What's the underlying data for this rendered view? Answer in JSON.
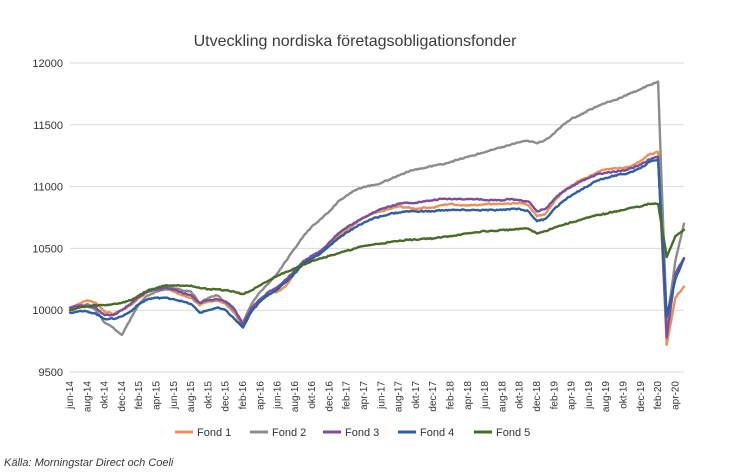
{
  "chart_data": {
    "type": "line",
    "title": "Utveckling nordiska företagsobligationsfonder",
    "xlabel": "",
    "ylabel": "",
    "ylim": [
      9500,
      12000
    ],
    "yticks": [
      9500,
      10000,
      10500,
      11000,
      11500,
      12000
    ],
    "x_ticks": [
      "jun-14",
      "aug-14",
      "okt-14",
      "dec-14",
      "feb-15",
      "apr-15",
      "jun-15",
      "aug-15",
      "okt-15",
      "dec-15",
      "feb-16",
      "apr-16",
      "jun-16",
      "aug-16",
      "okt-16",
      "dec-16",
      "feb-17",
      "apr-17",
      "jun-17",
      "aug-17",
      "okt-17",
      "dec-17",
      "feb-18",
      "apr-18",
      "jun-18",
      "aug-18",
      "okt-18",
      "dec-18",
      "feb-19",
      "apr-19",
      "jun-19",
      "aug-19",
      "okt-19",
      "dec-19",
      "feb-20",
      "apr-20"
    ],
    "grid": {
      "horizontal": true,
      "vertical": false
    },
    "legend_position": "bottom",
    "x": [
      "2014-06",
      "2014-07",
      "2014-08",
      "2014-09",
      "2014-10",
      "2014-11",
      "2014-12",
      "2015-01",
      "2015-02",
      "2015-03",
      "2015-04",
      "2015-05",
      "2015-06",
      "2015-07",
      "2015-08",
      "2015-09",
      "2015-10",
      "2015-11",
      "2015-12",
      "2016-01",
      "2016-02",
      "2016-03",
      "2016-04",
      "2016-05",
      "2016-06",
      "2016-07",
      "2016-08",
      "2016-09",
      "2016-10",
      "2016-11",
      "2016-12",
      "2017-01",
      "2017-02",
      "2017-03",
      "2017-04",
      "2017-05",
      "2017-06",
      "2017-07",
      "2017-08",
      "2017-09",
      "2017-10",
      "2017-11",
      "2017-12",
      "2018-01",
      "2018-02",
      "2018-03",
      "2018-04",
      "2018-05",
      "2018-06",
      "2018-07",
      "2018-08",
      "2018-09",
      "2018-10",
      "2018-11",
      "2018-12",
      "2019-01",
      "2019-02",
      "2019-03",
      "2019-04",
      "2019-05",
      "2019-06",
      "2019-07",
      "2019-08",
      "2019-09",
      "2019-10",
      "2019-11",
      "2019-12",
      "2020-01",
      "2020-02",
      "2020-03",
      "2020-04",
      "2020-05"
    ],
    "series": [
      {
        "name": "Fond 1",
        "color": "#e8915a",
        "values": [
          10020,
          10050,
          10080,
          10060,
          9990,
          9970,
          10000,
          10040,
          10100,
          10150,
          10170,
          10180,
          10150,
          10120,
          10100,
          10040,
          10070,
          10080,
          10050,
          9980,
          9860,
          10020,
          10080,
          10130,
          10150,
          10200,
          10300,
          10380,
          10420,
          10460,
          10530,
          10600,
          10650,
          10700,
          10750,
          10780,
          10800,
          10820,
          10840,
          10830,
          10820,
          10830,
          10830,
          10850,
          10860,
          10850,
          10850,
          10850,
          10860,
          10860,
          10860,
          10860,
          10870,
          10850,
          10760,
          10780,
          10880,
          10960,
          11010,
          11050,
          11080,
          11120,
          11140,
          11150,
          11150,
          11170,
          11210,
          11260,
          11280,
          9720,
          10100,
          10190
        ]
      },
      {
        "name": "Fond 2",
        "color": "#8c8c8c",
        "values": [
          10000,
          10030,
          10050,
          10000,
          9900,
          9860,
          9800,
          9930,
          10050,
          10120,
          10150,
          10170,
          10180,
          10160,
          10150,
          10060,
          10100,
          10120,
          10060,
          10000,
          9900,
          10050,
          10150,
          10220,
          10300,
          10400,
          10500,
          10600,
          10680,
          10740,
          10800,
          10880,
          10930,
          10970,
          11000,
          11010,
          11030,
          11060,
          11090,
          11120,
          11140,
          11150,
          11170,
          11180,
          11200,
          11220,
          11240,
          11260,
          11280,
          11300,
          11320,
          11340,
          11360,
          11370,
          11350,
          11380,
          11430,
          11500,
          11550,
          11580,
          11620,
          11650,
          11680,
          11700,
          11730,
          11760,
          11790,
          11820,
          11850,
          9890,
          10400,
          10700
        ]
      },
      {
        "name": "Fond 3",
        "color": "#7b4f9e",
        "values": [
          10020,
          10040,
          10030,
          10020,
          9960,
          9960,
          10000,
          10050,
          10110,
          10150,
          10170,
          10180,
          10170,
          10140,
          10120,
          10060,
          10080,
          10090,
          10070,
          10010,
          9880,
          10020,
          10090,
          10150,
          10190,
          10250,
          10320,
          10400,
          10440,
          10480,
          10550,
          10620,
          10670,
          10710,
          10750,
          10790,
          10820,
          10840,
          10860,
          10870,
          10870,
          10880,
          10890,
          10900,
          10900,
          10900,
          10900,
          10900,
          10890,
          10890,
          10890,
          10900,
          10890,
          10880,
          10800,
          10820,
          10900,
          10960,
          11000,
          11040,
          11070,
          11100,
          11110,
          11120,
          11130,
          11150,
          11180,
          11220,
          11240,
          9780,
          10300,
          10420
        ]
      },
      {
        "name": "Fond 4",
        "color": "#2e5f9e",
        "values": [
          9980,
          9990,
          9990,
          9970,
          9930,
          9930,
          9950,
          9990,
          10050,
          10090,
          10100,
          10100,
          10090,
          10070,
          10050,
          9980,
          10000,
          10020,
          10000,
          9930,
          9860,
          9990,
          10070,
          10130,
          10170,
          10230,
          10300,
          10380,
          10420,
          10460,
          10520,
          10580,
          10630,
          10670,
          10710,
          10740,
          10760,
          10780,
          10790,
          10800,
          10800,
          10800,
          10800,
          10810,
          10810,
          10810,
          10810,
          10810,
          10810,
          10810,
          10810,
          10820,
          10820,
          10800,
          10720,
          10740,
          10820,
          10880,
          10930,
          10970,
          11010,
          11050,
          11070,
          11090,
          11100,
          11120,
          11150,
          11200,
          11220,
          9950,
          10250,
          10420
        ]
      },
      {
        "name": "Fond 5",
        "color": "#4a6b2a",
        "values": [
          10000,
          10020,
          10030,
          10040,
          10040,
          10050,
          10060,
          10080,
          10120,
          10160,
          10180,
          10200,
          10200,
          10200,
          10200,
          10180,
          10170,
          10170,
          10160,
          10150,
          10130,
          10160,
          10200,
          10240,
          10280,
          10310,
          10340,
          10370,
          10400,
          10420,
          10440,
          10460,
          10480,
          10500,
          10520,
          10530,
          10540,
          10550,
          10560,
          10570,
          10570,
          10580,
          10580,
          10590,
          10600,
          10610,
          10620,
          10630,
          10640,
          10640,
          10650,
          10650,
          10660,
          10660,
          10620,
          10640,
          10670,
          10690,
          10710,
          10730,
          10750,
          10770,
          10780,
          10800,
          10810,
          10830,
          10840,
          10860,
          10860,
          10430,
          10600,
          10650
        ]
      }
    ]
  },
  "source_note": "Källa: Morningstar Direct och Coeli"
}
